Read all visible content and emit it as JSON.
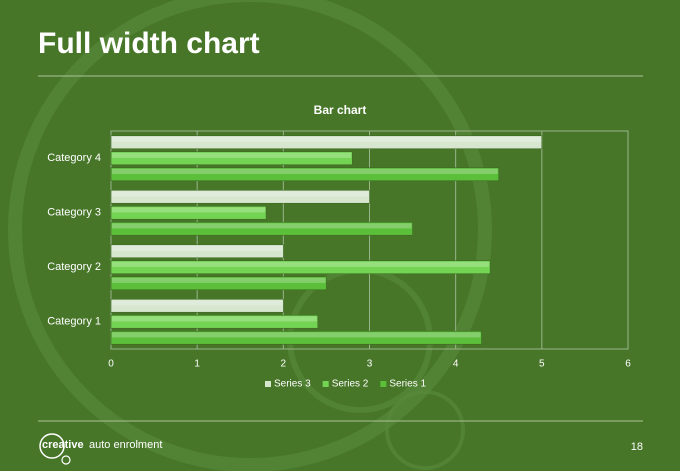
{
  "slide": {
    "title": "Full width chart",
    "logo_bold": "creative",
    "logo_rest": "auto enrolment",
    "page_number": "18"
  },
  "chart_data": {
    "type": "bar",
    "orientation": "horizontal",
    "title": "Bar chart",
    "categories": [
      "Category 1",
      "Category 2",
      "Category 3",
      "Category 4"
    ],
    "series": [
      {
        "name": "Series 1",
        "color": "#5bbf3a",
        "values": [
          4.3,
          2.5,
          3.5,
          4.5
        ]
      },
      {
        "name": "Series 2",
        "color": "#72d452",
        "values": [
          2.4,
          4.4,
          1.8,
          2.8
        ]
      },
      {
        "name": "Series 3",
        "color": "#d6e6cf",
        "values": [
          2,
          2,
          3,
          5
        ]
      }
    ],
    "xlim": [
      0,
      6
    ],
    "xticks": [
      0,
      1,
      2,
      3,
      4,
      5,
      6
    ],
    "grid": true,
    "legend": "bottom"
  }
}
